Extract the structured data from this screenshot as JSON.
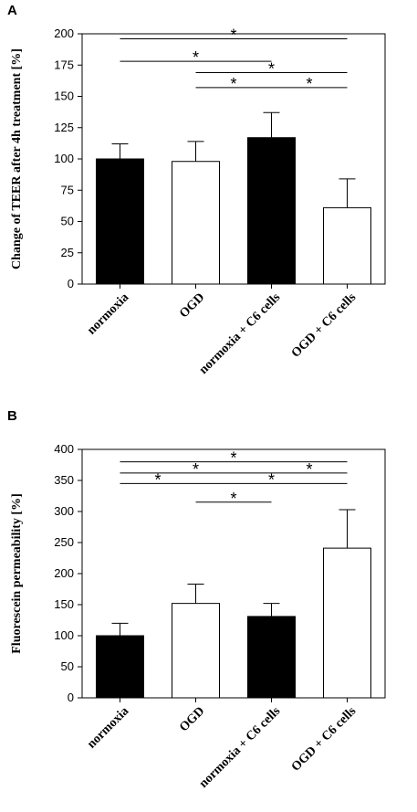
{
  "chart_data": [
    {
      "type": "bar",
      "panel_label": "A",
      "ylabel": "Change of TEER after 4h treatment [%]",
      "xlabel": "",
      "ylim": [
        0,
        200
      ],
      "yticks": [
        0,
        25,
        50,
        75,
        100,
        125,
        150,
        175,
        200
      ],
      "categories": [
        "normoxia",
        "OGD",
        "normoxia + C6 cells",
        "OGD + C6 cells"
      ],
      "values": [
        100,
        98,
        117,
        61
      ],
      "errors": [
        12,
        16,
        20,
        23
      ],
      "bar_fills": [
        "#000000",
        "#ffffff",
        "#000000",
        "#ffffff"
      ],
      "significance": [
        {
          "from": 0,
          "to": 3,
          "level": 196,
          "label": "*"
        },
        {
          "from": 0,
          "to": 2,
          "level": 178,
          "label": "*"
        },
        {
          "from": 1,
          "to": 3,
          "level": 169,
          "label": "*"
        },
        {
          "from": 1,
          "to": 2,
          "level": 157,
          "label": "*"
        },
        {
          "from": 2,
          "to": 3,
          "level": 157,
          "label": "*"
        }
      ]
    },
    {
      "type": "bar",
      "panel_label": "B",
      "ylabel": "Fluorescein permeability [%]",
      "xlabel": "",
      "ylim": [
        0,
        400
      ],
      "yticks": [
        0,
        50,
        100,
        150,
        200,
        250,
        300,
        350,
        400
      ],
      "categories": [
        "normoxia",
        "OGD",
        "normoxia + C6 cells",
        "OGD + C6 cells"
      ],
      "values": [
        100,
        152,
        131,
        241
      ],
      "errors": [
        20,
        31,
        21,
        62
      ],
      "bar_fills": [
        "#000000",
        "#ffffff",
        "#000000",
        "#ffffff"
      ],
      "significance": [
        {
          "from": 0,
          "to": 3,
          "level": 380,
          "label": "*"
        },
        {
          "from": 0,
          "to": 2,
          "level": 362,
          "label": "*"
        },
        {
          "from": 2,
          "to": 3,
          "level": 362,
          "label": "*"
        },
        {
          "from": 0,
          "to": 1,
          "level": 345,
          "label": "*"
        },
        {
          "from": 1,
          "to": 3,
          "level": 345,
          "label": "*"
        },
        {
          "from": 1,
          "to": 2,
          "level": 315,
          "label": "*"
        }
      ]
    }
  ]
}
